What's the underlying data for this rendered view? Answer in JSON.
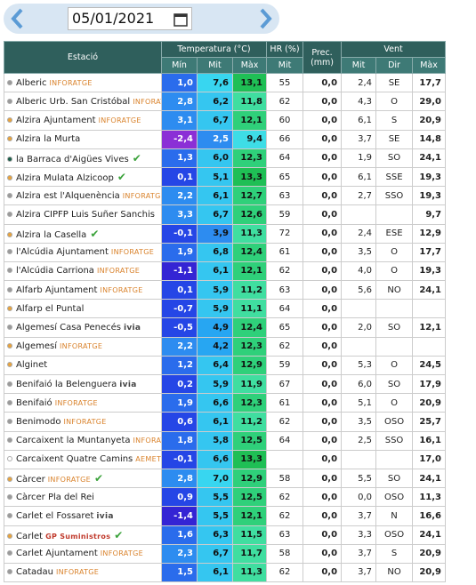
{
  "date": "05/01/2021",
  "header": {
    "station": "Estació",
    "temperature": "Temperatura (°C)",
    "humidity": "HR (%)",
    "precipitation": "Prec. (mm)",
    "wind": "Vent",
    "temperature_sub": [
      "Mín",
      "Mit",
      "Màx"
    ],
    "humidity_sub": [
      "Mit"
    ],
    "wind_sub": [
      "Mit",
      "Dir",
      "Màx"
    ]
  },
  "rows": [
    {
      "station": "Alberic",
      "tag": "INFORATGE",
      "dot": "#9a9a9a",
      "check": false,
      "cells": [
        "1,0",
        "7,6",
        "13,1",
        "55",
        "0,0",
        "2,4",
        "SE",
        "17,7"
      ]
    },
    {
      "station": "Alberic Urb. San Cristóbal",
      "tag": "INFORATGE",
      "dot": "#9a9a9a",
      "check": false,
      "cells": [
        "2,8",
        "6,2",
        "11,8",
        "62",
        "0,0",
        "4,3",
        "O",
        "29,0"
      ]
    },
    {
      "station": "Alzira Ajuntament",
      "tag": "INFORATGE",
      "dot": "#e8a33d",
      "check": false,
      "cells": [
        "3,1",
        "6,7",
        "12,1",
        "60",
        "0,0",
        "6,1",
        "S",
        "20,9"
      ]
    },
    {
      "station": "Alzira la Murta",
      "dot": "#e8a33d",
      "check": false,
      "cells": [
        "-2,4",
        "2,5",
        "9,4",
        "66",
        "0,0",
        "3,7",
        "SE",
        "14,8"
      ]
    },
    {
      "station": "la Barraca d'Aigües Vives",
      "dot": "#1d5e4a",
      "check": true,
      "cells": [
        "1,3",
        "6,0",
        "12,3",
        "64",
        "0,0",
        "1,9",
        "SO",
        "24,1"
      ]
    },
    {
      "station": "Alzira Mulata Alzicoop",
      "dot": "#e8a33d",
      "check": true,
      "cells": [
        "0,1",
        "5,1",
        "13,3",
        "65",
        "0,0",
        "6,1",
        "SSE",
        "19,3"
      ]
    },
    {
      "station": "Alzira est l'Alquenència",
      "tag": "INFORATGE",
      "dot": "#9a9a9a",
      "check": false,
      "cells": [
        "2,2",
        "6,1",
        "12,7",
        "63",
        "0,0",
        "2,7",
        "SSO",
        "19,3"
      ]
    },
    {
      "station": "Alzira CIPFP Luis Suñer Sanchis",
      "dot": "#9a9a9a",
      "check": false,
      "cells": [
        "3,3",
        "6,7",
        "12,6",
        "59",
        "0,0",
        null,
        null,
        "9,7"
      ]
    },
    {
      "station": "Alzira la Casella",
      "dot": "#e8a33d",
      "check": true,
      "cells": [
        "-0,1",
        "3,9",
        "11,3",
        "72",
        "0,0",
        "2,4",
        "ESE",
        "12,9"
      ]
    },
    {
      "station": "l'Alcúdia Ajuntament",
      "tag": "INFORATGE",
      "dot": "#9a9a9a",
      "check": false,
      "cells": [
        "1,9",
        "6,8",
        "12,4",
        "61",
        "0,0",
        "3,5",
        "O",
        "17,7"
      ]
    },
    {
      "station": "l'Alcúdia Carriona",
      "tag": "INFORATGE",
      "dot": "#9a9a9a",
      "check": false,
      "cells": [
        "-1,1",
        "6,1",
        "12,1",
        "62",
        "0,0",
        "4,0",
        "O",
        "19,3"
      ]
    },
    {
      "station": "Alfarb Ajuntament",
      "tag": "INFORATGE",
      "dot": "#9a9a9a",
      "check": false,
      "cells": [
        "0,1",
        "5,9",
        "11,2",
        "63",
        "0,0",
        "5,6",
        "NO",
        "24,1"
      ]
    },
    {
      "station": "Alfarp el Puntal",
      "dot": "#e8a33d",
      "check": false,
      "cells": [
        "-0,7",
        "5,9",
        "11,1",
        "64",
        "0,0",
        null,
        null,
        null
      ]
    },
    {
      "station": "Algemesí Casa Penecés",
      "tag": "ivia",
      "dot": "#9a9a9a",
      "check": false,
      "cells": [
        "-0,5",
        "4,9",
        "12,4",
        "65",
        "0,0",
        "2,0",
        "SO",
        "12,1"
      ]
    },
    {
      "station": "Algemesí",
      "tag": "INFORATGE",
      "dot": "#e8a33d",
      "check": false,
      "cells": [
        "2,2",
        "4,2",
        "12,3",
        "62",
        "0,0",
        null,
        null,
        null
      ]
    },
    {
      "station": "Alginet",
      "dot": "#e8a33d",
      "check": false,
      "cells": [
        "1,2",
        "6,4",
        "12,9",
        "59",
        "0,0",
        "5,3",
        "O",
        "24,5"
      ]
    },
    {
      "station": "Benifaió la Belenguera",
      "tag": "ivia",
      "dot": "#9a9a9a",
      "check": false,
      "cells": [
        "0,2",
        "5,9",
        "11,9",
        "67",
        "0,0",
        "6,0",
        "SO",
        "17,9"
      ]
    },
    {
      "station": "Benifaió",
      "tag": "INFORATGE",
      "dot": "#9a9a9a",
      "check": false,
      "cells": [
        "1,9",
        "6,6",
        "12,3",
        "61",
        "0,0",
        "5,1",
        "O",
        "20,9"
      ]
    },
    {
      "station": "Benimodo",
      "tag": "INFORATGE",
      "dot": "#9a9a9a",
      "check": false,
      "cells": [
        "0,6",
        "6,1",
        "11,2",
        "62",
        "0,0",
        "3,5",
        "OSO",
        "25,7"
      ]
    },
    {
      "station": "Carcaixent la Muntanyeta",
      "tag": "INFORATGE",
      "dot": "#9a9a9a",
      "check": false,
      "cells": [
        "1,8",
        "5,8",
        "12,5",
        "64",
        "0,0",
        "2,5",
        "SSO",
        "16,1"
      ]
    },
    {
      "station": "Carcaixent Quatre Camins",
      "tag": "AEMET",
      "dot": "#ffffff",
      "check": false,
      "cells": [
        "-0,1",
        "6,6",
        "13,3",
        null,
        "0,0",
        null,
        null,
        "17,0"
      ]
    },
    {
      "station": "Càrcer",
      "tag": "INFORATGE",
      "dot": "#e8a33d",
      "check": true,
      "cells": [
        "2,8",
        "7,0",
        "12,9",
        "58",
        "0,0",
        "5,5",
        "SO",
        "24,1"
      ]
    },
    {
      "station": "Càrcer Pla del Rei",
      "dot": "#9a9a9a",
      "check": false,
      "cells": [
        "0,9",
        "5,5",
        "12,5",
        "62",
        "0,0",
        "0,0",
        "OSO",
        "11,3"
      ]
    },
    {
      "station": "Carlet el Fossaret",
      "tag": "ivia",
      "dot": "#9a9a9a",
      "check": false,
      "cells": [
        "-1,4",
        "5,5",
        "12,1",
        "62",
        "0,0",
        "3,7",
        "N",
        "16,6"
      ]
    },
    {
      "station": "Carlet",
      "tag": "GP Suministros",
      "dot": "#e8a33d",
      "check": true,
      "cells": [
        "1,6",
        "6,3",
        "11,5",
        "63",
        "0,0",
        "3,3",
        "OSO",
        "24,1"
      ]
    },
    {
      "station": "Carlet Ajuntament",
      "tag": "INFORATGE",
      "dot": "#9a9a9a",
      "check": false,
      "cells": [
        "2,3",
        "6,7",
        "11,7",
        "58",
        "0,0",
        "3,7",
        "S",
        "20,9"
      ]
    },
    {
      "station": "Catadau",
      "tag": "INFORATGE",
      "dot": "#9a9a9a",
      "check": false,
      "cells": [
        "1,5",
        "6,1",
        "11,3",
        "62",
        "0,0",
        "3,7",
        "NO",
        "20,9"
      ]
    }
  ]
}
